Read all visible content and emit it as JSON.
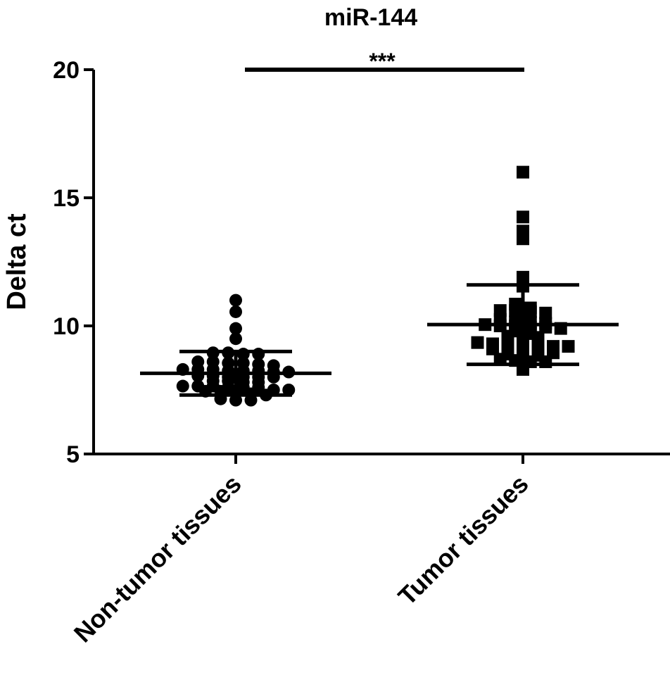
{
  "chart_data": {
    "type": "scatter",
    "title": "miR-144",
    "xlabel": "",
    "ylabel": "Delta ct",
    "ylim": [
      5,
      20
    ],
    "yticks": [
      "5",
      "10",
      "15",
      "20"
    ],
    "categories": [
      "Non-tumor tissues",
      "Tumor tissues"
    ],
    "significance": "***",
    "grid": false,
    "series": [
      {
        "marker": "circle",
        "mean": 8.15,
        "sd": 0.85,
        "values": [
          11.0,
          10.55,
          9.9,
          9.5,
          8.95,
          8.9,
          8.95,
          8.9,
          8.6,
          8.55,
          8.5,
          8.45,
          8.55,
          8.6,
          8.3,
          8.25,
          8.2,
          8.25,
          8.3,
          8.25,
          8.2,
          8.3,
          8.0,
          8.0,
          8.05,
          8.0,
          8.05,
          8.0,
          7.8,
          7.85,
          7.8,
          7.85,
          7.65,
          7.6,
          7.6,
          7.65,
          7.6,
          7.65,
          7.5,
          7.45,
          7.45,
          7.5,
          7.35,
          7.3,
          7.4,
          7.15,
          7.1,
          7.1
        ]
      },
      {
        "marker": "square",
        "mean": 10.05,
        "sd": 1.55,
        "values": [
          16.0,
          14.25,
          13.7,
          13.4,
          11.9,
          11.55,
          10.85,
          10.7,
          10.6,
          10.6,
          10.55,
          10.5,
          10.25,
          10.15,
          10.1,
          10.0,
          9.95,
          9.95,
          9.9,
          10.05,
          10.0,
          10.15,
          9.8,
          9.6,
          9.55,
          9.7,
          9.6,
          9.35,
          9.25,
          9.2,
          9.3,
          9.2,
          9.25,
          9.3,
          9.1,
          9.0,
          9.0,
          9.05,
          8.9,
          8.85,
          8.95,
          8.85,
          8.7,
          8.6,
          8.6,
          8.65,
          8.3
        ]
      }
    ]
  }
}
